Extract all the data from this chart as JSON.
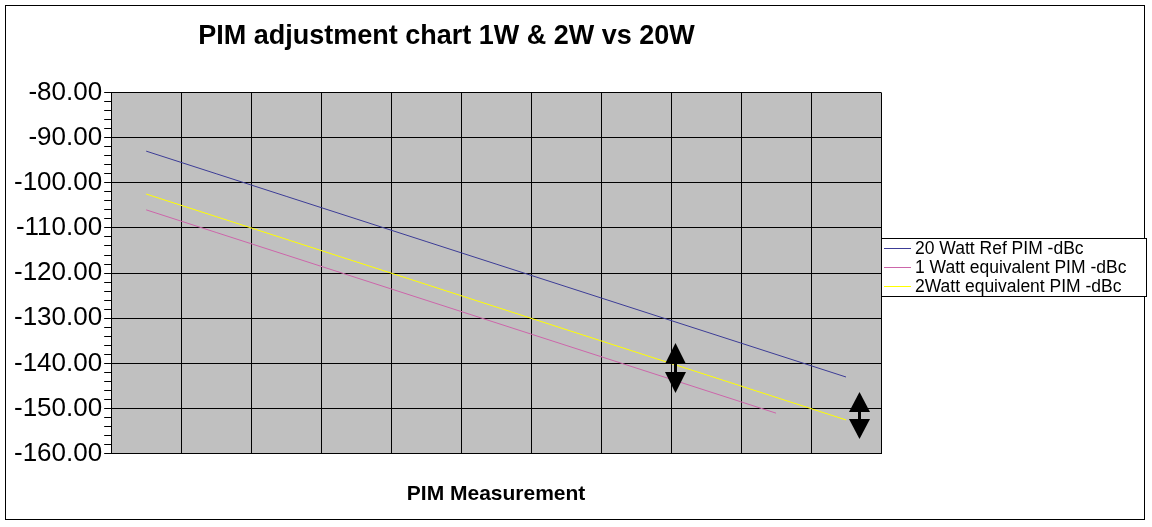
{
  "chart_data": {
    "type": "line",
    "title": "PIM adjustment chart 1W & 2W vs 20W",
    "xlabel": "PIM Measurement",
    "categories": [
      null,
      null,
      null,
      null,
      null,
      null,
      null,
      null,
      null,
      null,
      null
    ],
    "series": [
      {
        "name": "20 Watt Ref PIM -dBc",
        "color": "#3c3c96",
        "values": [
          -93,
          -98,
          -103,
          -108,
          -113,
          -118,
          -123,
          -128,
          -133,
          -138,
          -143
        ]
      },
      {
        "name": "1 Watt equivalent PIM -dBc",
        "color": "#cc66aa",
        "values": [
          -106,
          -111,
          -116,
          -121,
          -126,
          -131,
          -136,
          -141,
          -146,
          -151,
          null
        ]
      },
      {
        "name": "2Watt equivalent PIM -dBc",
        "color": "#ffff00",
        "values": [
          -102.5,
          -107.5,
          -112.5,
          -117.5,
          -122.5,
          -127.5,
          -132.5,
          -137.5,
          -142.5,
          -147.5,
          -152.5
        ]
      }
    ],
    "ylim": [
      -160,
      -80
    ],
    "yticks": [
      {
        "value": -160,
        "label": "-160.00"
      },
      {
        "value": -158,
        "label": null
      },
      {
        "value": -156,
        "label": null
      },
      {
        "value": -154,
        "label": null
      },
      {
        "value": -152,
        "label": null
      },
      {
        "value": -150,
        "label": "-150.00"
      },
      {
        "value": -148,
        "label": null
      },
      {
        "value": -146,
        "label": null
      },
      {
        "value": -144,
        "label": null
      },
      {
        "value": -142,
        "label": null
      },
      {
        "value": -140,
        "label": "-140.00"
      },
      {
        "value": -138,
        "label": null
      },
      {
        "value": -136,
        "label": null
      },
      {
        "value": -134,
        "label": null
      },
      {
        "value": -132,
        "label": null
      },
      {
        "value": -130,
        "label": "-130.00"
      },
      {
        "value": -128,
        "label": null
      },
      {
        "value": -126,
        "label": null
      },
      {
        "value": -124,
        "label": null
      },
      {
        "value": -122,
        "label": null
      },
      {
        "value": -120,
        "label": "-120.00"
      },
      {
        "value": -118,
        "label": null
      },
      {
        "value": -116,
        "label": null
      },
      {
        "value": -114,
        "label": null
      },
      {
        "value": -112,
        "label": null
      },
      {
        "value": -110,
        "label": "-110.00"
      },
      {
        "value": -108,
        "label": null
      },
      {
        "value": -106,
        "label": null
      },
      {
        "value": -104,
        "label": null
      },
      {
        "value": -102,
        "label": null
      },
      {
        "value": -100,
        "label": "-100.00"
      },
      {
        "value": -98,
        "label": null
      },
      {
        "value": -96,
        "label": null
      },
      {
        "value": -94,
        "label": null
      },
      {
        "value": -92,
        "label": null
      },
      {
        "value": -90,
        "label": "-90.00"
      },
      {
        "value": -88,
        "label": null
      },
      {
        "value": -86,
        "label": null
      },
      {
        "value": -84,
        "label": null
      },
      {
        "value": -82,
        "label": null
      },
      {
        "value": -80,
        "label": "-80.00"
      }
    ],
    "grid": true,
    "legend": "right",
    "marker": "none",
    "line_style": "solid"
  }
}
